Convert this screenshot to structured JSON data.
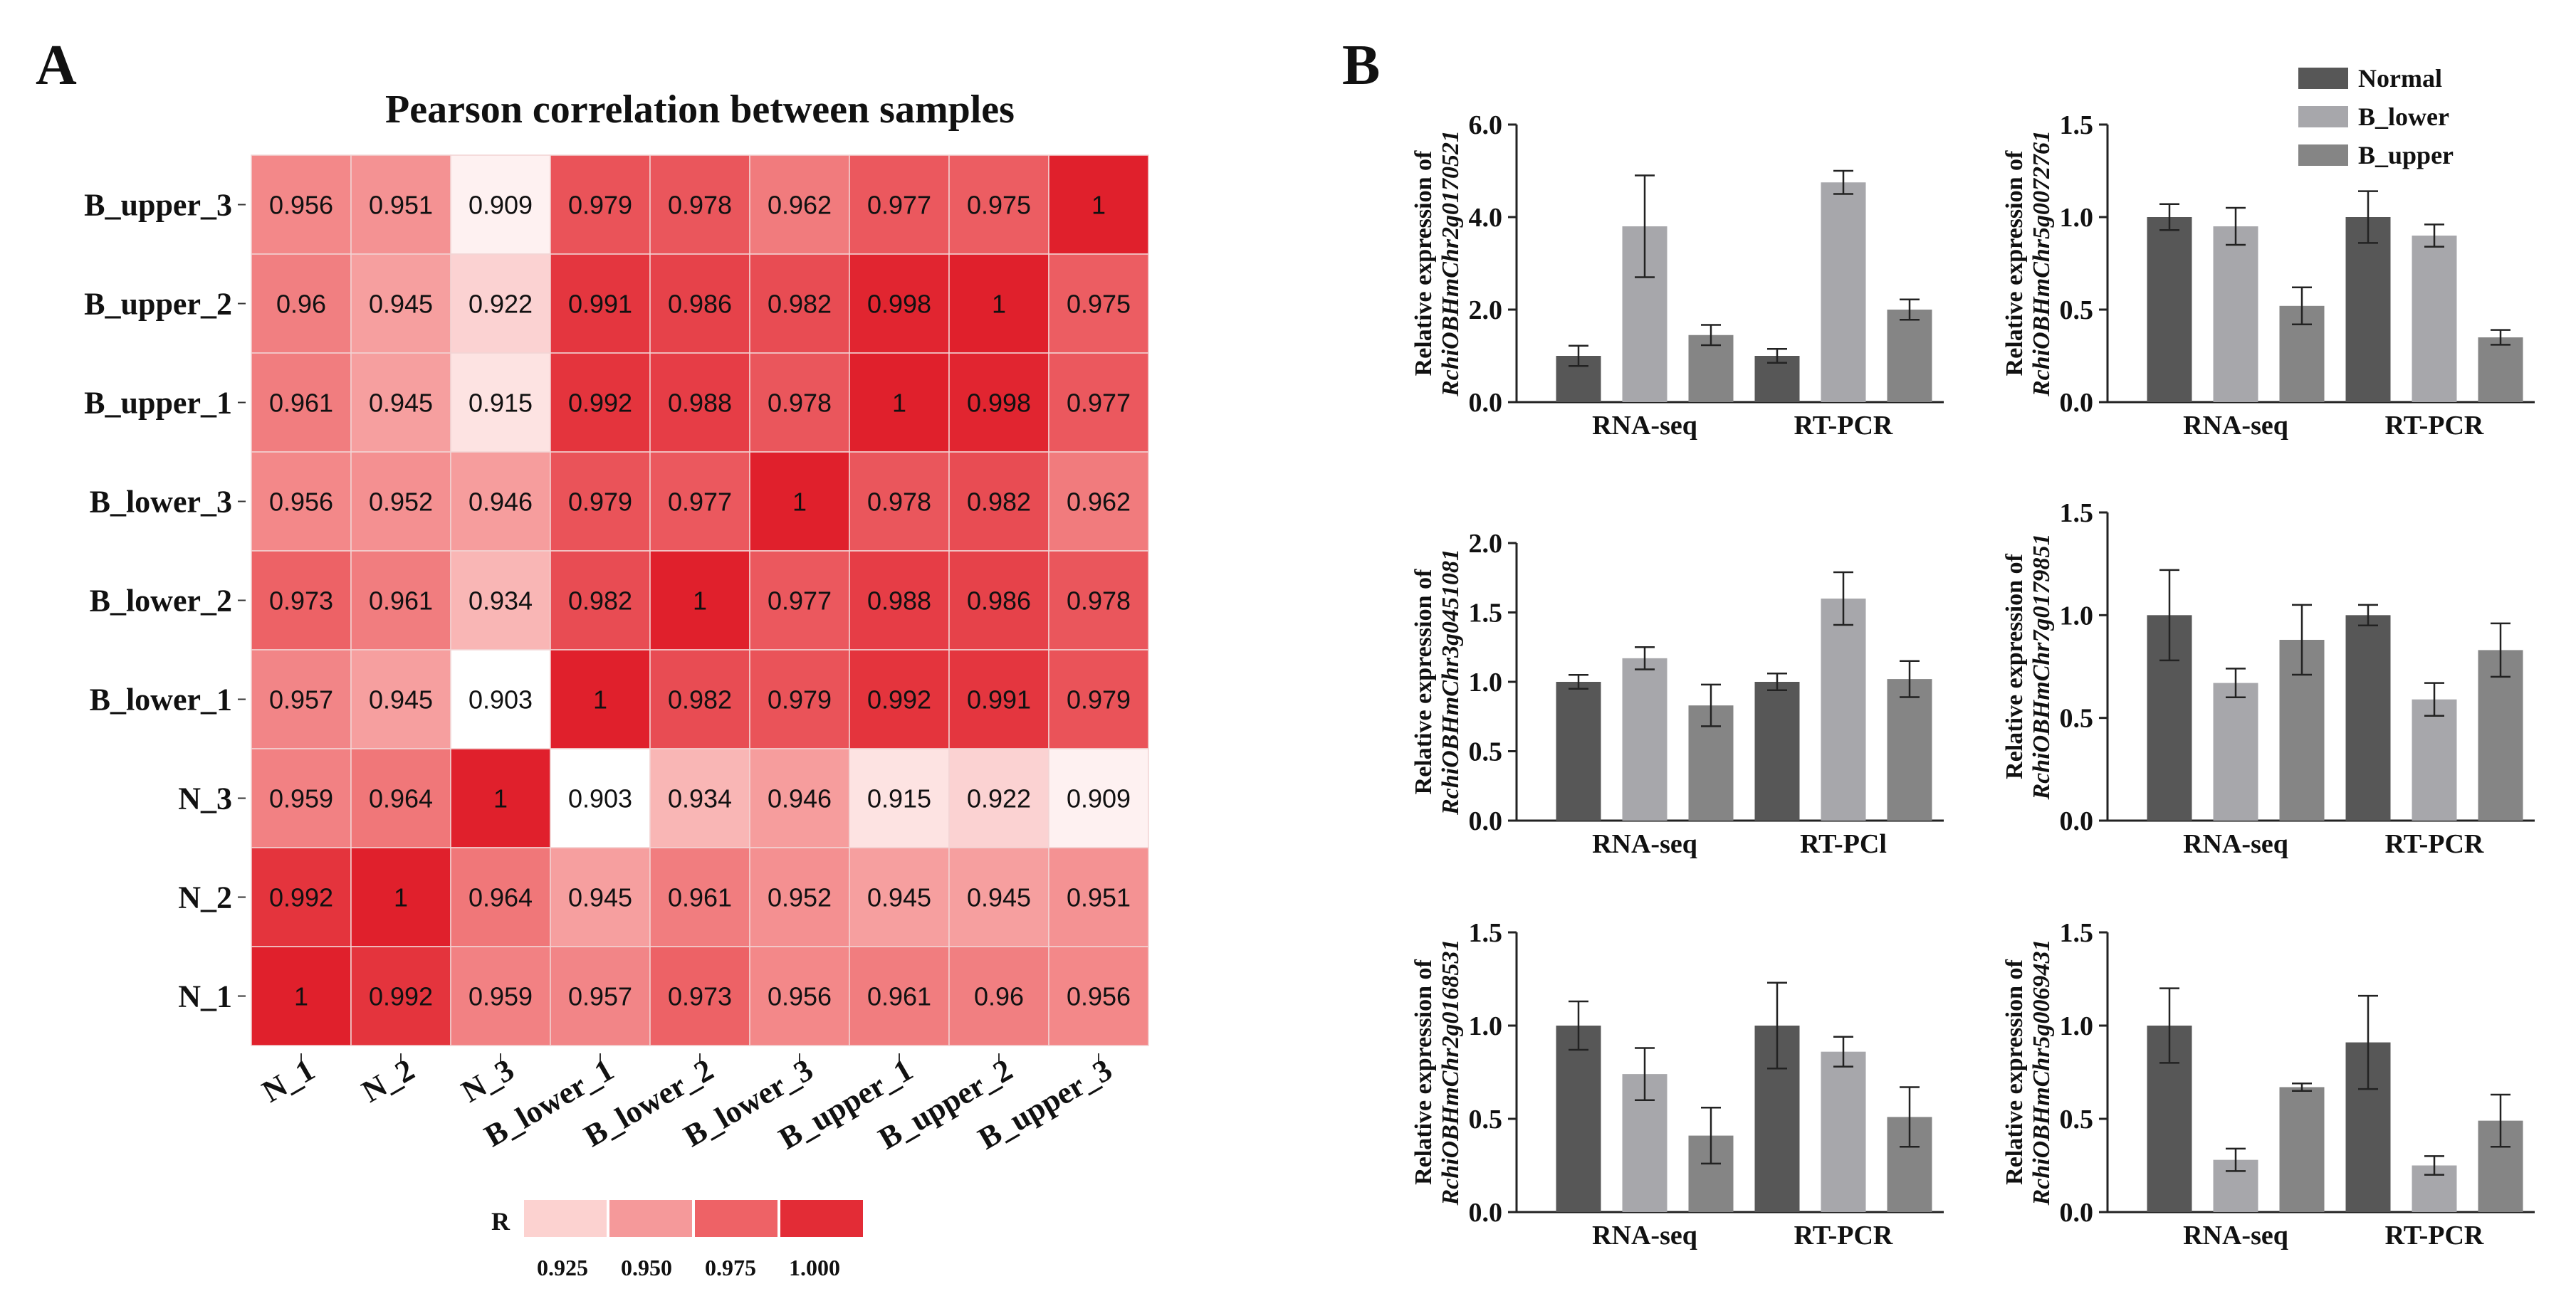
{
  "panel_a": {
    "letter": "A",
    "color_scale": {
      "label": "R",
      "ticks": [
        "0.925",
        "0.950",
        "0.975",
        "1.000"
      ],
      "colors": [
        "#fcd2d0",
        "#f5999a",
        "#ee6266",
        "#e32c36"
      ]
    }
  },
  "panel_b": {
    "letter": "B",
    "legend": [
      {
        "name": "Normal",
        "color": "#575757"
      },
      {
        "name": "B_lower",
        "color": "#a7a7ab"
      },
      {
        "name": "B_upper",
        "color": "#858585"
      }
    ]
  },
  "chart_data": [
    {
      "type": "heatmap",
      "title": "Pearson correlation between samples",
      "rows": [
        "B_upper_3",
        "B_upper_2",
        "B_upper_1",
        "B_lower_3",
        "B_lower_2",
        "B_lower_1",
        "N_3",
        "N_2",
        "N_1"
      ],
      "columns": [
        "N_1",
        "N_2",
        "N_3",
        "B_lower_1",
        "B_lower_2",
        "B_lower_3",
        "B_upper_1",
        "B_upper_2",
        "B_upper_3"
      ],
      "values": [
        [
          "0.956",
          "0.951",
          "0.909",
          "0.979",
          "0.978",
          "0.962",
          "0.977",
          "0.975",
          "1"
        ],
        [
          "0.96",
          "0.945",
          "0.922",
          "0.991",
          "0.986",
          "0.982",
          "0.998",
          "1",
          "0.975"
        ],
        [
          "0.961",
          "0.945",
          "0.915",
          "0.992",
          "0.988",
          "0.978",
          "1",
          "0.998",
          "0.977"
        ],
        [
          "0.956",
          "0.952",
          "0.946",
          "0.979",
          "0.977",
          "1",
          "0.978",
          "0.982",
          "0.962"
        ],
        [
          "0.973",
          "0.961",
          "0.934",
          "0.982",
          "1",
          "0.977",
          "0.988",
          "0.986",
          "0.978"
        ],
        [
          "0.957",
          "0.945",
          "0.903",
          "1",
          "0.982",
          "0.979",
          "0.992",
          "0.991",
          "0.979"
        ],
        [
          "0.959",
          "0.964",
          "1",
          "0.903",
          "0.934",
          "0.946",
          "0.915",
          "0.922",
          "0.909"
        ],
        [
          "0.992",
          "1",
          "0.964",
          "0.945",
          "0.961",
          "0.952",
          "0.945",
          "0.945",
          "0.951"
        ],
        [
          "1",
          "0.992",
          "0.959",
          "0.957",
          "0.973",
          "0.956",
          "0.961",
          "0.96",
          "0.956"
        ]
      ],
      "scale_range": [
        0.903,
        1.0
      ]
    },
    {
      "type": "bar",
      "ylabel_line1": "Relative expression of",
      "ylabel_line2": "RchiOBHmChr2g0170521",
      "categories": [
        "RNA-seq",
        "RT-PCR"
      ],
      "ylim": [
        0,
        6
      ],
      "yticks": [
        "0.0",
        "2.0",
        "4.0",
        "6.0"
      ],
      "series": [
        {
          "name": "Normal",
          "values": [
            1.0,
            1.0
          ],
          "errors": [
            0.22,
            0.15
          ]
        },
        {
          "name": "B_lower",
          "values": [
            3.8,
            4.75
          ],
          "errors": [
            1.1,
            0.25
          ]
        },
        {
          "name": "B_upper",
          "values": [
            1.45,
            2.0
          ],
          "errors": [
            0.22,
            0.22
          ]
        }
      ]
    },
    {
      "type": "bar",
      "ylabel_line1": "Relative expression of",
      "ylabel_line2": "RchiOBHmChr5g0072761",
      "categories": [
        "RNA-seq",
        "RT-PCR"
      ],
      "ylim": [
        0,
        1.5
      ],
      "yticks": [
        "0.0",
        "0.5",
        "1.0",
        "1.5"
      ],
      "series": [
        {
          "name": "Normal",
          "values": [
            1.0,
            1.0
          ],
          "errors": [
            0.07,
            0.14
          ]
        },
        {
          "name": "B_lower",
          "values": [
            0.95,
            0.9
          ],
          "errors": [
            0.1,
            0.06
          ]
        },
        {
          "name": "B_upper",
          "values": [
            0.52,
            0.35
          ],
          "errors": [
            0.1,
            0.04
          ]
        }
      ]
    },
    {
      "type": "bar",
      "ylabel_line1": "Relative expression of",
      "ylabel_line2": "RchiOBHmChr3g0451081",
      "categories": [
        "RNA-seq",
        "RT-PCl"
      ],
      "ylim": [
        0,
        2
      ],
      "yticks": [
        "0.0",
        "0.5",
        "1.0",
        "1.5",
        "2.0"
      ],
      "series": [
        {
          "name": "Normal",
          "values": [
            1.0,
            1.0
          ],
          "errors": [
            0.05,
            0.06
          ]
        },
        {
          "name": "B_lower",
          "values": [
            1.17,
            1.6
          ],
          "errors": [
            0.08,
            0.19
          ]
        },
        {
          "name": "B_upper",
          "values": [
            0.83,
            1.02
          ],
          "errors": [
            0.15,
            0.13
          ]
        }
      ]
    },
    {
      "type": "bar",
      "ylabel_line1": "Relative expression of",
      "ylabel_line2": "RchiOBHmChr7g0179851",
      "categories": [
        "RNA-seq",
        "RT-PCR"
      ],
      "ylim": [
        0,
        1.5
      ],
      "yticks": [
        "0.0",
        "0.5",
        "1.0",
        "1.5"
      ],
      "series": [
        {
          "name": "Normal",
          "values": [
            1.0,
            1.0
          ],
          "errors": [
            0.22,
            0.05
          ]
        },
        {
          "name": "B_lower",
          "values": [
            0.67,
            0.59
          ],
          "errors": [
            0.07,
            0.08
          ]
        },
        {
          "name": "B_upper",
          "values": [
            0.88,
            0.83
          ],
          "errors": [
            0.17,
            0.13
          ]
        }
      ]
    },
    {
      "type": "bar",
      "ylabel_line1": "Relative expression of",
      "ylabel_line2": "RchiOBHmChr2g0168531",
      "categories": [
        "RNA-seq",
        "RT-PCR"
      ],
      "ylim": [
        0,
        1.5
      ],
      "yticks": [
        "0.0",
        "0.5",
        "1.0",
        "1.5"
      ],
      "series": [
        {
          "name": "Normal",
          "values": [
            1.0,
            1.0
          ],
          "errors": [
            0.13,
            0.23
          ]
        },
        {
          "name": "B_lower",
          "values": [
            0.74,
            0.86
          ],
          "errors": [
            0.14,
            0.08
          ]
        },
        {
          "name": "B_upper",
          "values": [
            0.41,
            0.51
          ],
          "errors": [
            0.15,
            0.16
          ]
        }
      ]
    },
    {
      "type": "bar",
      "ylabel_line1": "Relative expression of",
      "ylabel_line2": "RchiOBHmChr5g0069431",
      "categories": [
        "RNA-seq",
        "RT-PCR"
      ],
      "ylim": [
        0,
        1.5
      ],
      "yticks": [
        "0.0",
        "0.5",
        "1.0",
        "1.5"
      ],
      "series": [
        {
          "name": "Normal",
          "values": [
            1.0,
            0.91
          ],
          "errors": [
            0.2,
            0.25
          ]
        },
        {
          "name": "B_lower",
          "values": [
            0.28,
            0.25
          ],
          "errors": [
            0.06,
            0.05
          ]
        },
        {
          "name": "B_upper",
          "values": [
            0.67,
            0.49
          ],
          "errors": [
            0.02,
            0.14
          ]
        }
      ]
    }
  ]
}
